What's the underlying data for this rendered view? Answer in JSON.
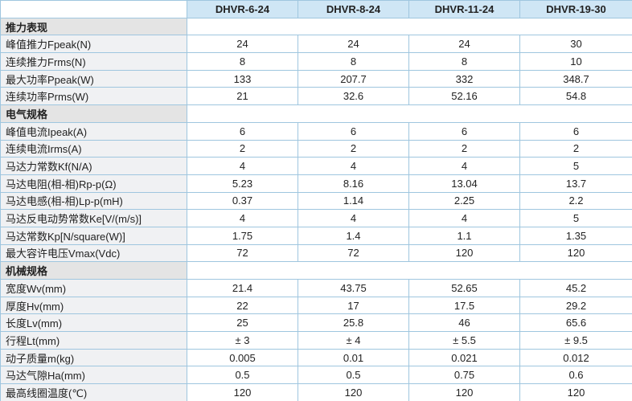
{
  "table": {
    "columns": [
      "DHVR-6-24",
      "DHVR-8-24",
      "DHVR-11-24",
      "DHVR-19-30"
    ],
    "sections": [
      {
        "title": "推力表现",
        "rows": [
          [
            "峰值推力Fpeak(N)",
            "24",
            "24",
            "24",
            "30"
          ],
          [
            "连续推力Frms(N)",
            "8",
            "8",
            "8",
            "10"
          ],
          [
            "最大功率Ppeak(W)",
            "133",
            "207.7",
            "332",
            "348.7"
          ],
          [
            "连续功率Prms(W)",
            "21",
            "32.6",
            "52.16",
            "54.8"
          ]
        ]
      },
      {
        "title": "电气规格",
        "rows": [
          [
            "峰值电流Ipeak(A)",
            "6",
            "6",
            "6",
            "6"
          ],
          [
            "连续电流Irms(A)",
            "2",
            "2",
            "2",
            "2"
          ],
          [
            "马达力常数Kf(N/A)",
            "4",
            "4",
            "4",
            "5"
          ],
          [
            "马达电阻(相-相)Rp-p(Ω)",
            "5.23",
            "8.16",
            "13.04",
            "13.7"
          ],
          [
            "马达电感(相-相)Lp-p(mH)",
            "0.37",
            "1.14",
            "2.25",
            "2.2"
          ],
          [
            "马达反电动势常数Ke[V/(m/s)]",
            "4",
            "4",
            "4",
            "5"
          ],
          [
            "马达常数Kp[N/square(W)]",
            "1.75",
            "1.4",
            "1.1",
            "1.35"
          ],
          [
            "最大容许电压Vmax(Vdc)",
            "72",
            "72",
            "120",
            "120"
          ]
        ]
      },
      {
        "title": "机械规格",
        "rows": [
          [
            "宽度Wv(mm)",
            "21.4",
            "43.75",
            "52.65",
            "45.2"
          ],
          [
            "厚度Hv(mm)",
            "22",
            "17",
            "17.5",
            "29.2"
          ],
          [
            "长度Lv(mm)",
            "25",
            "25.8",
            "46",
            "65.6"
          ],
          [
            "行程Lt(mm)",
            "± 3",
            "± 4",
            "± 5.5",
            "± 9.5"
          ],
          [
            "动子质量m(kg)",
            "0.005",
            "0.01",
            "0.021",
            "0.012"
          ],
          [
            "马达气隙Ha(mm)",
            "0.5",
            "0.5",
            "0.75",
            "0.6"
          ],
          [
            "最高线圈温度(℃)",
            "120",
            "120",
            "120",
            "120"
          ]
        ]
      }
    ]
  }
}
